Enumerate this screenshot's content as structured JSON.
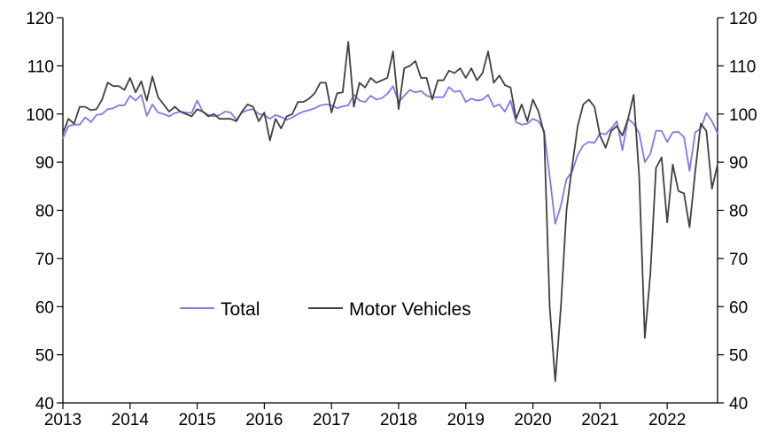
{
  "chart_data": {
    "type": "line",
    "title": "",
    "xlabel": "",
    "ylabel": "",
    "ylim": [
      40,
      120
    ],
    "yticks": [
      40,
      50,
      60,
      70,
      80,
      90,
      100,
      110,
      120
    ],
    "ytick_labels": [
      "40",
      "50",
      "60",
      "70",
      "80",
      "90",
      "100",
      "110",
      "120"
    ],
    "xlim": [
      2013.0,
      2022.75
    ],
    "xticks": [
      2013,
      2014,
      2015,
      2016,
      2017,
      2018,
      2019,
      2020,
      2021,
      2022
    ],
    "xtick_labels": [
      "2013",
      "2014",
      "2015",
      "2016",
      "2017",
      "2018",
      "2019",
      "2020",
      "2021",
      "2022"
    ],
    "legend_position": "lower-left-center",
    "grid": false,
    "series": [
      {
        "name": "Total",
        "color": "#7b7bea",
        "x": [
          2013.0,
          2013.083,
          2013.167,
          2013.25,
          2013.333,
          2013.417,
          2013.5,
          2013.583,
          2013.667,
          2013.75,
          2013.833,
          2013.917,
          2014.0,
          2014.083,
          2014.167,
          2014.25,
          2014.333,
          2014.417,
          2014.5,
          2014.583,
          2014.667,
          2014.75,
          2014.833,
          2014.917,
          2015.0,
          2015.083,
          2015.167,
          2015.25,
          2015.333,
          2015.417,
          2015.5,
          2015.583,
          2015.667,
          2015.75,
          2015.833,
          2015.917,
          2016.0,
          2016.083,
          2016.167,
          2016.25,
          2016.333,
          2016.417,
          2016.5,
          2016.583,
          2016.667,
          2016.75,
          2016.833,
          2016.917,
          2017.0,
          2017.083,
          2017.167,
          2017.25,
          2017.333,
          2017.417,
          2017.5,
          2017.583,
          2017.667,
          2017.75,
          2017.833,
          2017.917,
          2018.0,
          2018.083,
          2018.167,
          2018.25,
          2018.333,
          2018.417,
          2018.5,
          2018.583,
          2018.667,
          2018.75,
          2018.833,
          2018.917,
          2019.0,
          2019.083,
          2019.167,
          2019.25,
          2019.333,
          2019.417,
          2019.5,
          2019.583,
          2019.667,
          2019.75,
          2019.833,
          2019.917,
          2020.0,
          2020.083,
          2020.167,
          2020.25,
          2020.333,
          2020.417,
          2020.5,
          2020.583,
          2020.667,
          2020.75,
          2020.833,
          2020.917,
          2021.0,
          2021.083,
          2021.167,
          2021.25,
          2021.333,
          2021.417,
          2021.5,
          2021.583,
          2021.667,
          2021.75,
          2021.833,
          2021.917,
          2022.0,
          2022.083,
          2022.167,
          2022.25,
          2022.333,
          2022.417,
          2022.5,
          2022.583,
          2022.667,
          2022.75
        ],
        "values": [
          95,
          97.5,
          97.8,
          97.8,
          99.3,
          98.3,
          99.8,
          100,
          101,
          101.2,
          101.8,
          101.8,
          103.8,
          102.8,
          104,
          99.6,
          102,
          100.3,
          100,
          99.5,
          100.2,
          100.5,
          100.3,
          100.2,
          102.8,
          100.5,
          99.8,
          99.5,
          99.8,
          100.5,
          100.3,
          98.8,
          100.3,
          100.8,
          101,
          100,
          99.8,
          99,
          99.8,
          99.4,
          98.8,
          99.3,
          100,
          100.5,
          100.8,
          101.2,
          101.8,
          102,
          101.8,
          101.2,
          101.6,
          101.8,
          104,
          102.8,
          102.5,
          103.8,
          103,
          103.3,
          104.2,
          105.8,
          102.5,
          103.8,
          105,
          104.5,
          104.8,
          103.8,
          103.5,
          103.5,
          103.5,
          105.6,
          104.6,
          104.8,
          102.5,
          103.2,
          102.8,
          103,
          104,
          101.5,
          102,
          100.5,
          102.8,
          98.3,
          97.8,
          98,
          99,
          98.5,
          96.5,
          87,
          77.2,
          81,
          86.5,
          88,
          91.5,
          93.5,
          94.2,
          94,
          96,
          95.8,
          97,
          98.5,
          92.5,
          99,
          98,
          96,
          90,
          91.8,
          96.5,
          96.5,
          94.2,
          96.2,
          96.3,
          95.2,
          88.2,
          96.2,
          97,
          100.2,
          98.5,
          96
        ]
      },
      {
        "name": "Motor Vehicles",
        "color": "#404040",
        "x": [
          2013.0,
          2013.083,
          2013.167,
          2013.25,
          2013.333,
          2013.417,
          2013.5,
          2013.583,
          2013.667,
          2013.75,
          2013.833,
          2013.917,
          2014.0,
          2014.083,
          2014.167,
          2014.25,
          2014.333,
          2014.417,
          2014.5,
          2014.583,
          2014.667,
          2014.75,
          2014.833,
          2014.917,
          2015.0,
          2015.083,
          2015.167,
          2015.25,
          2015.333,
          2015.417,
          2015.5,
          2015.583,
          2015.667,
          2015.75,
          2015.833,
          2015.917,
          2016.0,
          2016.083,
          2016.167,
          2016.25,
          2016.333,
          2016.417,
          2016.5,
          2016.583,
          2016.667,
          2016.75,
          2016.833,
          2016.917,
          2017.0,
          2017.083,
          2017.167,
          2017.25,
          2017.333,
          2017.417,
          2017.5,
          2017.583,
          2017.667,
          2017.75,
          2017.833,
          2017.917,
          2018.0,
          2018.083,
          2018.167,
          2018.25,
          2018.333,
          2018.417,
          2018.5,
          2018.583,
          2018.667,
          2018.75,
          2018.833,
          2018.917,
          2019.0,
          2019.083,
          2019.167,
          2019.25,
          2019.333,
          2019.417,
          2019.5,
          2019.583,
          2019.667,
          2019.75,
          2019.833,
          2019.917,
          2020.0,
          2020.083,
          2020.167,
          2020.25,
          2020.333,
          2020.417,
          2020.5,
          2020.583,
          2020.667,
          2020.75,
          2020.833,
          2020.917,
          2021.0,
          2021.083,
          2021.167,
          2021.25,
          2021.333,
          2021.417,
          2021.5,
          2021.583,
          2021.667,
          2021.75,
          2021.833,
          2021.917,
          2022.0,
          2022.083,
          2022.167,
          2022.25,
          2022.333,
          2022.417,
          2022.5,
          2022.583,
          2022.667,
          2022.75
        ],
        "values": [
          96,
          99,
          98,
          101.5,
          101.5,
          100.8,
          101,
          103,
          106.5,
          105.8,
          105.8,
          105,
          107.5,
          104.5,
          106.8,
          102.8,
          107.8,
          103.5,
          102,
          100.5,
          101.5,
          100.5,
          100,
          99.5,
          101,
          100.5,
          99.5,
          100,
          99,
          99,
          99,
          98.5,
          100.5,
          102,
          101.5,
          98.5,
          100.3,
          94.5,
          99,
          97,
          99.5,
          100,
          102.5,
          102.5,
          103.2,
          104.3,
          106.5,
          106.5,
          100.3,
          104.3,
          104.5,
          115,
          101.5,
          106.5,
          105.5,
          107.5,
          106.5,
          107,
          107.5,
          113,
          101,
          109.5,
          110,
          111,
          107.5,
          107.5,
          103,
          107,
          107,
          109,
          108.5,
          109.5,
          107.5,
          109.5,
          107,
          108.5,
          113,
          106.5,
          108,
          106,
          105.5,
          99,
          102,
          98.5,
          103,
          100.5,
          96,
          60,
          44.5,
          60,
          80,
          89,
          97.5,
          102,
          103,
          101.5,
          95.5,
          93,
          96.5,
          97.5,
          95.5,
          99,
          104,
          87,
          53.5,
          67,
          88.8,
          91,
          77.5,
          89.5,
          84,
          83.5,
          76.5,
          88,
          98,
          96.5,
          84.5,
          89.5
        ]
      }
    ]
  }
}
